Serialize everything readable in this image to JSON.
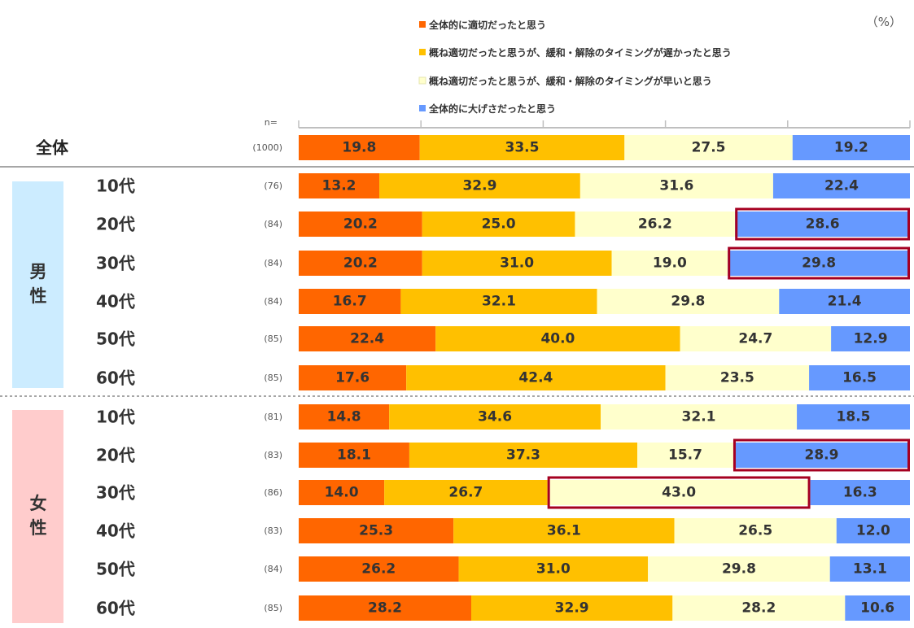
{
  "chart_data": {
    "type": "bar",
    "stacked": "100%",
    "orientation": "horizontal",
    "unit": "（%）",
    "n_header": "n=",
    "legend": [
      {
        "label": "全体的に適切だったと思う",
        "color": "#FF6600"
      },
      {
        "label": "概ね適切だったと思うが、緩和・解除のタイミングが遅かったと思う",
        "color": "#FFC000"
      },
      {
        "label": "概ね適切だったと思うが、緩和・解除のタイミングが早いと思う",
        "color": "#FFFFCC"
      },
      {
        "label": "全体的に大げさだったと思う",
        "color": "#6699FF"
      }
    ],
    "total": {
      "label": "全体",
      "n": "(1000)",
      "values": [
        19.8,
        33.5,
        27.5,
        19.2
      ]
    },
    "groups": [
      {
        "gender": "男性",
        "color": "#CCECFF",
        "rows": [
          {
            "label": "10代",
            "n": "(76)",
            "values": [
              13.2,
              32.9,
              31.6,
              22.4
            ]
          },
          {
            "label": "20代",
            "n": "(84)",
            "values": [
              20.2,
              25.0,
              26.2,
              28.6
            ],
            "highlight": 3
          },
          {
            "label": "30代",
            "n": "(84)",
            "values": [
              20.2,
              31.0,
              19.0,
              29.8
            ],
            "highlight": 3
          },
          {
            "label": "40代",
            "n": "(84)",
            "values": [
              16.7,
              32.1,
              29.8,
              21.4
            ]
          },
          {
            "label": "50代",
            "n": "(85)",
            "values": [
              22.4,
              40.0,
              24.7,
              12.9
            ]
          },
          {
            "label": "60代",
            "n": "(85)",
            "values": [
              17.6,
              42.4,
              23.5,
              16.5
            ]
          }
        ]
      },
      {
        "gender": "女性",
        "color": "#FFCCCC",
        "rows": [
          {
            "label": "10代",
            "n": "(81)",
            "values": [
              14.8,
              34.6,
              32.1,
              18.5
            ]
          },
          {
            "label": "20代",
            "n": "(83)",
            "values": [
              18.1,
              37.3,
              15.7,
              28.9
            ],
            "highlight": 3
          },
          {
            "label": "30代",
            "n": "(86)",
            "values": [
              14.0,
              26.7,
              43.0,
              16.3
            ],
            "highlight": 2
          },
          {
            "label": "40代",
            "n": "(83)",
            "values": [
              25.3,
              36.1,
              26.5,
              12.0
            ]
          },
          {
            "label": "50代",
            "n": "(84)",
            "values": [
              26.2,
              31.0,
              29.8,
              13.1
            ]
          },
          {
            "label": "60代",
            "n": "(85)",
            "values": [
              28.2,
              32.9,
              28.2,
              10.6
            ]
          }
        ]
      }
    ]
  }
}
